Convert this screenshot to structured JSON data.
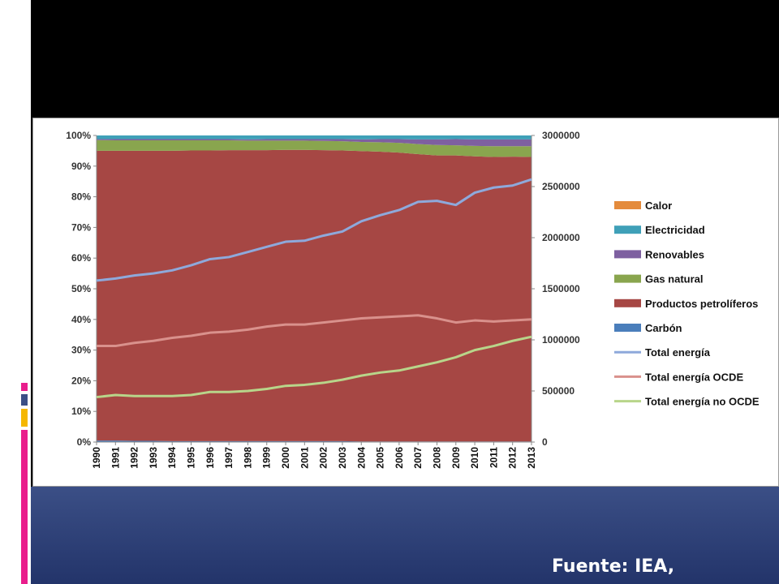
{
  "source_text": "Fuente: IEA,",
  "chart_data": {
    "type": "area",
    "stacked_percent": true,
    "years": [
      "1990",
      "1991",
      "1992",
      "1993",
      "1994",
      "1995",
      "1996",
      "1997",
      "1998",
      "1999",
      "2000",
      "2001",
      "2002",
      "2003",
      "2004",
      "2005",
      "2006",
      "2007",
      "2008",
      "2009",
      "2010",
      "2011",
      "2012",
      "2013"
    ],
    "left_axis": {
      "ticks": [
        "0%",
        "10%",
        "20%",
        "30%",
        "40%",
        "50%",
        "60%",
        "70%",
        "80%",
        "90%",
        "100%"
      ],
      "ylim": [
        0,
        100
      ]
    },
    "right_axis": {
      "ticks": [
        "0",
        "500000",
        "1000000",
        "1500000",
        "2000000",
        "2500000",
        "3000000"
      ],
      "ylim": [
        0,
        3000000
      ]
    },
    "area_series": [
      {
        "name": "Carbón",
        "color": "#4a7ebb",
        "values": [
          0.5,
          0.5,
          0.4,
          0.4,
          0.3,
          0.3,
          0.3,
          0.3,
          0.3,
          0.3,
          0.3,
          0.3,
          0.3,
          0.3,
          0.2,
          0.2,
          0.2,
          0.2,
          0.2,
          0.2,
          0.2,
          0.2,
          0.2,
          0.2
        ]
      },
      {
        "name": "Productos petrolíferos",
        "color": "#a64744",
        "values": [
          94.5,
          94.5,
          94.6,
          94.6,
          94.7,
          94.8,
          94.8,
          94.9,
          94.9,
          94.9,
          95.0,
          95.0,
          94.9,
          94.8,
          94.7,
          94.5,
          94.2,
          93.7,
          93.3,
          93.3,
          93.0,
          92.8,
          92.9,
          92.8
        ]
      },
      {
        "name": "Gas natural",
        "color": "#89a54e",
        "values": [
          3.5,
          3.4,
          3.4,
          3.4,
          3.4,
          3.3,
          3.3,
          3.2,
          3.1,
          3.1,
          3.0,
          3.0,
          3.0,
          3.0,
          3.0,
          3.1,
          3.2,
          3.3,
          3.4,
          3.3,
          3.4,
          3.5,
          3.4,
          3.5
        ]
      },
      {
        "name": "Renovables",
        "color": "#7e60a0",
        "values": [
          0.3,
          0.4,
          0.4,
          0.4,
          0.4,
          0.4,
          0.4,
          0.4,
          0.4,
          0.5,
          0.5,
          0.5,
          0.6,
          0.7,
          0.8,
          1.0,
          1.2,
          1.5,
          1.8,
          2.0,
          2.1,
          2.2,
          2.2,
          2.2
        ]
      },
      {
        "name": "Electricidad",
        "color": "#3fa0b8",
        "values": [
          1.2,
          1.2,
          1.2,
          1.2,
          1.2,
          1.2,
          1.2,
          1.2,
          1.3,
          1.2,
          1.2,
          1.2,
          1.2,
          1.2,
          1.3,
          1.2,
          1.2,
          1.3,
          1.3,
          1.2,
          1.3,
          1.3,
          1.3,
          1.3
        ]
      },
      {
        "name": "Calor",
        "color": "#e48b3c",
        "values": [
          0.0,
          0.0,
          0.0,
          0.0,
          0.0,
          0.0,
          0.0,
          0.0,
          0.0,
          0.0,
          0.0,
          0.0,
          0.0,
          0.0,
          0.0,
          0.0,
          0.0,
          0.0,
          0.0,
          0.0,
          0.0,
          0.0,
          0.0,
          0.0
        ]
      }
    ],
    "line_series": [
      {
        "name": "Total energía",
        "color": "#8ea9db",
        "values": [
          1580000,
          1600000,
          1630000,
          1650000,
          1680000,
          1730000,
          1790000,
          1810000,
          1860000,
          1910000,
          1960000,
          1970000,
          2020000,
          2060000,
          2160000,
          2220000,
          2270000,
          2350000,
          2360000,
          2320000,
          2440000,
          2490000,
          2510000,
          2570000
        ]
      },
      {
        "name": "Total energía OCDE",
        "color": "#d9918c",
        "values": [
          940000,
          940000,
          970000,
          990000,
          1020000,
          1040000,
          1070000,
          1080000,
          1100000,
          1130000,
          1150000,
          1150000,
          1170000,
          1190000,
          1210000,
          1220000,
          1230000,
          1240000,
          1210000,
          1170000,
          1190000,
          1180000,
          1190000,
          1200000
        ]
      },
      {
        "name": "Total energía no OCDE",
        "color": "#b8d58a",
        "values": [
          440000,
          460000,
          450000,
          450000,
          450000,
          460000,
          490000,
          490000,
          500000,
          520000,
          550000,
          560000,
          580000,
          610000,
          650000,
          680000,
          700000,
          740000,
          780000,
          830000,
          900000,
          940000,
          990000,
          1030000
        ]
      }
    ],
    "legend": {
      "placement": "right",
      "entries": [
        "Calor",
        "Electricidad",
        "Renovables",
        "Gas natural",
        "Productos petrolíferos",
        "Carbón",
        "Total energía",
        "Total energía OCDE",
        "Total energía no OCDE"
      ]
    }
  }
}
